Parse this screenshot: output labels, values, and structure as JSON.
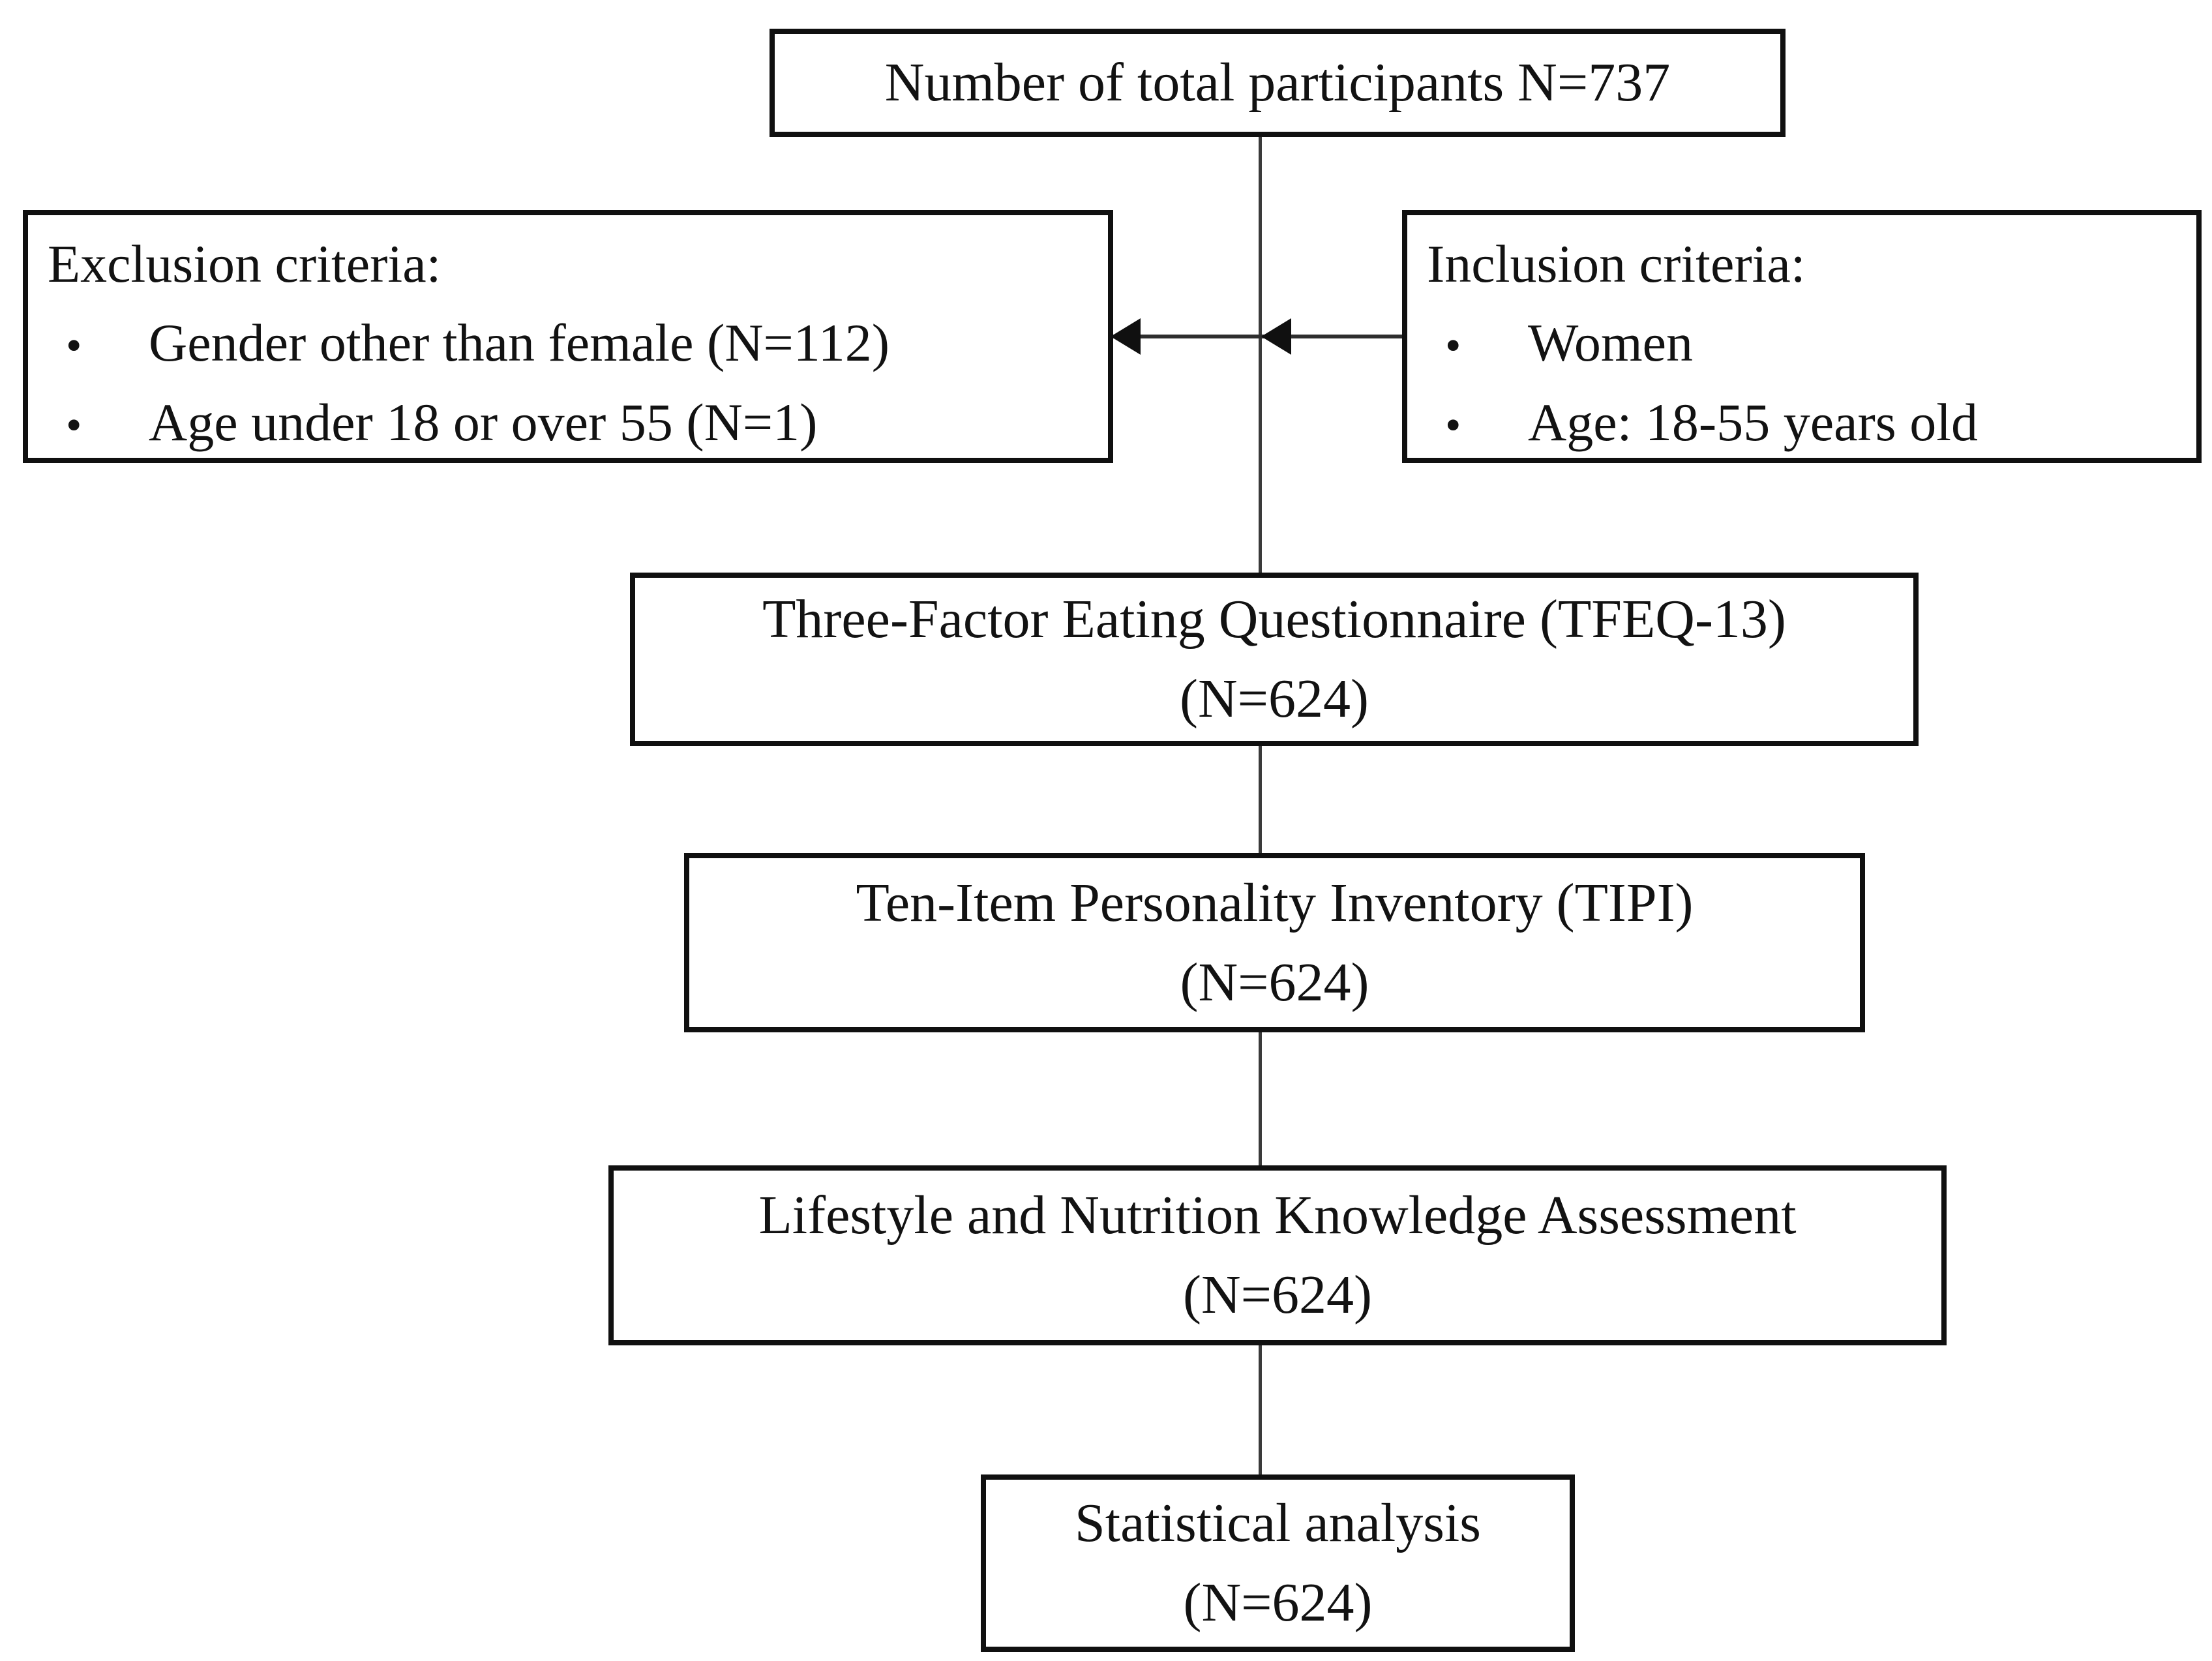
{
  "diagram": {
    "bullet_char": "•",
    "colors": {
      "background": "#ffffff",
      "box_border": "#101010",
      "connector_line": "#3a3a3a",
      "text": "#121212"
    },
    "top_box": {
      "text": "Number of total participants N=737"
    },
    "exclusion_box": {
      "title": "Exclusion criteria:",
      "items": [
        "Gender other than female (N=112)",
        "Age under 18 or over 55 (N=1)"
      ]
    },
    "inclusion_box": {
      "title": "Inclusion criteria:",
      "items": [
        "Women",
        "Age: 18-55 years old"
      ]
    },
    "flow_boxes": [
      {
        "title": "Three-Factor Eating Questionnaire (TFEQ-13)",
        "n": "(N=624)"
      },
      {
        "title": "Ten-Item Personality Inventory (TIPI)",
        "n": "(N=624)"
      },
      {
        "title": "Lifestyle and Nutrition Knowledge Assessment",
        "n": "(N=624)"
      },
      {
        "title": "Statistical analysis",
        "n": "(N=624)"
      }
    ]
  }
}
